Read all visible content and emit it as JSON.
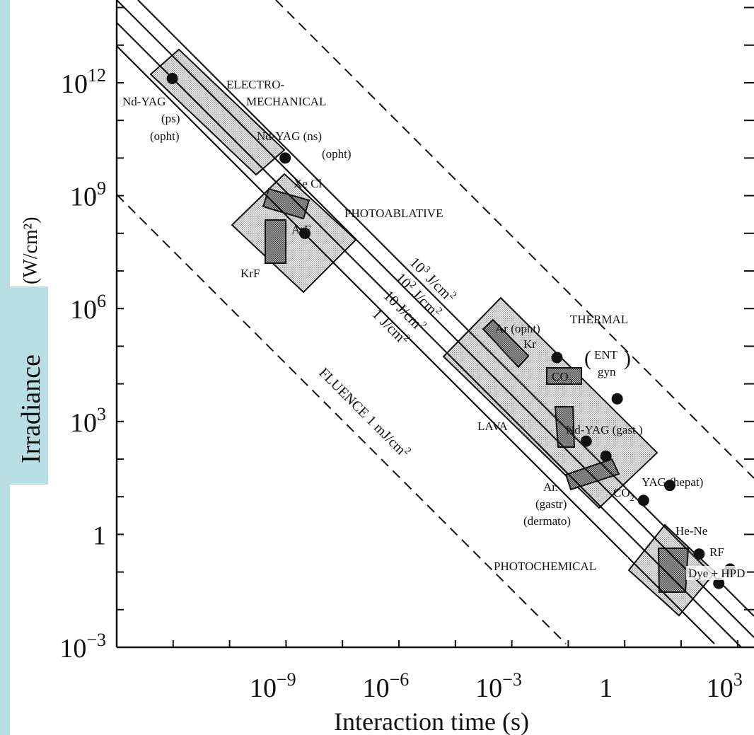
{
  "chart_data": {
    "type": "scatter",
    "xlabel": "Interaction time (s)",
    "ylabel": "Irradiance",
    "ylabel_unit": "(W/cm²)",
    "x_scale": "log",
    "y_scale": "log",
    "xlim": [
      1e-13,
      100000.0
    ],
    "ylim": [
      0.001,
      100000000000000.0
    ],
    "x_ticks": [
      {
        "value": 1e-09,
        "base": "10",
        "exp": "−9"
      },
      {
        "value": 1e-06,
        "base": "10",
        "exp": "−6"
      },
      {
        "value": 0.001,
        "base": "10",
        "exp": "−3"
      },
      {
        "value": 1,
        "base": "1",
        "exp": ""
      },
      {
        "value": 1000.0,
        "base": "10",
        "exp": "3"
      }
    ],
    "y_ticks": [
      {
        "value": 1000000000000.0,
        "base": "10",
        "exp": "12"
      },
      {
        "value": 1000000000.0,
        "base": "10",
        "exp": "9"
      },
      {
        "value": 1000000.0,
        "base": "10",
        "exp": "6"
      },
      {
        "value": 1000.0,
        "base": "10",
        "exp": "3"
      },
      {
        "value": 1,
        "base": "1",
        "exp": ""
      },
      {
        "value": 0.001,
        "base": "10",
        "exp": "−3"
      }
    ],
    "fluence_lines": [
      {
        "label": "FLUENCE 1 mJ/cm²",
        "base": "FLUENCE 1 mJ/cm",
        "sup": "2",
        "fluence": 0.001,
        "dashed": true
      },
      {
        "label": "1 J/cm²",
        "base": "1 J/cm",
        "sup": "2",
        "fluence": 1,
        "dashed": false
      },
      {
        "label": "10 J/cm²",
        "base": "10 J/cm",
        "sup": "2",
        "fluence": 10,
        "dashed": false
      },
      {
        "label": "10² J/cm²",
        "base": "10",
        "sup0": "2",
        "base2": " J/cm",
        "sup": "2",
        "fluence": 100,
        "dashed": false
      },
      {
        "label": "10³ J/cm²",
        "base": "10",
        "sup0": "3",
        "base2": " J/cm",
        "sup": "2",
        "fluence": 1000,
        "dashed": false
      },
      {
        "label": "",
        "fluence": 100000.0,
        "dashed": true
      }
    ],
    "regions": [
      "ELECTRO-",
      "MECHANICAL",
      "PHOTOABLATIVE",
      "THERMAL",
      "PHOTOCHEMICAL"
    ],
    "points": [
      {
        "label": "Nd-YAG (ps) (opht)",
        "x": 3e-12,
        "y": 1300000000000.0
      },
      {
        "label": "Nd-YAG (ns) (opht)",
        "x": 3e-09,
        "y": 10000000000.0
      },
      {
        "label": "ArF",
        "x": 1e-08,
        "y": 100000000.0
      },
      {
        "label": "Ar (opht) Kr",
        "x": 0.05,
        "y": 50000.0
      },
      {
        "label": "CO2 (ENT gyn)",
        "x": 2,
        "y": 4000.0
      },
      {
        "label": "LAVA",
        "x": 0.3,
        "y": 300.0
      },
      {
        "label": "Nd-YAG (gast.)",
        "x": 1,
        "y": 120.0
      },
      {
        "label": "YAG (hepat)",
        "x": 50,
        "y": 20
      },
      {
        "label": "CO2",
        "x": 10,
        "y": 8
      },
      {
        "label": "He-Ne",
        "x": 300,
        "y": 0.3
      },
      {
        "label": "RF",
        "x": 2000,
        "y": 0.12
      },
      {
        "label": "Dye + HPD",
        "x": 1000,
        "y": 0.05
      }
    ]
  },
  "labels": {
    "electro1": "ELECTRO-",
    "electro2": "MECHANICAL",
    "photoablative": "PHOTOABLATIVE",
    "thermal": "THERMAL",
    "photochemical": "PHOTOCHEMICAL",
    "ndyag_ps1": "Nd-YAG",
    "ndyag_ps2": "(ps)",
    "ndyag_ps3": "(opht)",
    "ndyag_ns1": "Nd-YAG (ns)",
    "ndyag_ns2": "(opht)",
    "xecl": "Xe Cl",
    "arf": "ArF",
    "krf": "KrF",
    "ar_opht": "Ar (opht)",
    "kr": "Kr",
    "ent1": "ENT",
    "ent2": "gyn",
    "co2_box": "CO",
    "co2_box_sub": "2",
    "lava": "LAVA",
    "ndyag_gast": "Nd-YAG (gast.)",
    "yag_hepat": "YAG (hepat)",
    "co2": "CO",
    "co2_sub": "2",
    "ar_g1": "Ar.",
    "ar_g2": "(gastr)",
    "ar_g3": "(dermato)",
    "hene": "He-Ne",
    "rf": "RF",
    "dye": "Dye + HPD"
  },
  "colors": {
    "strip": "#b9dfe5",
    "ink": "#111111",
    "box_fill": "#d9d9d9",
    "dark_box_fill": "#a8a8a8"
  }
}
